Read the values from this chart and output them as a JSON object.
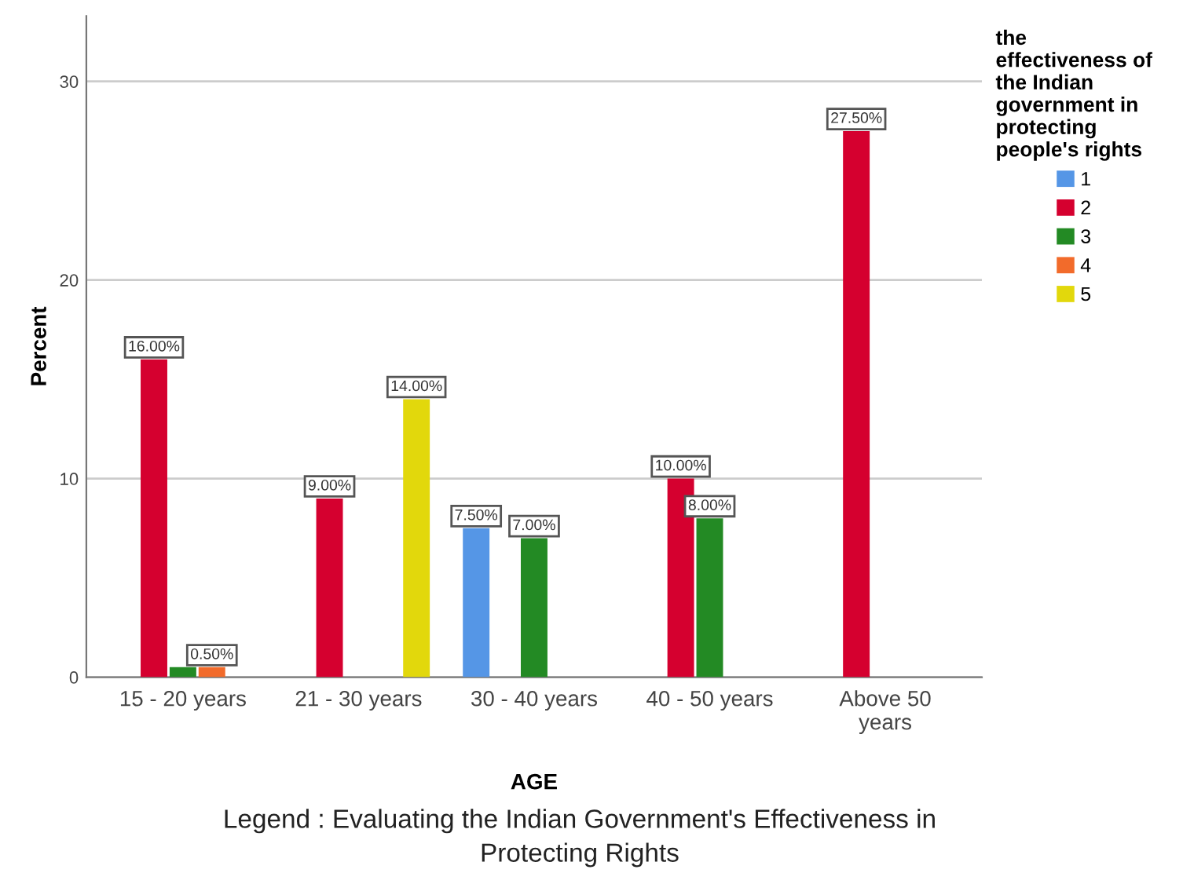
{
  "chart_data": {
    "type": "bar",
    "categories": [
      "15 - 20 years",
      "21 - 30 years",
      "30 - 40 years",
      "40 - 50 years",
      "Above 50 years"
    ],
    "series": [
      {
        "name": "1",
        "color": "#5596e6",
        "values": [
          null,
          null,
          7.5,
          null,
          null
        ],
        "value_labels": [
          null,
          null,
          "7.50%",
          null,
          null
        ]
      },
      {
        "name": "2",
        "color": "#d5002f",
        "values": [
          16,
          9,
          null,
          10,
          27.5
        ],
        "value_labels": [
          "16.00%",
          "9.00%",
          null,
          "10.00%",
          "27.50%"
        ]
      },
      {
        "name": "3",
        "color": "#238a24",
        "values": [
          0.5,
          null,
          7,
          8,
          null
        ],
        "value_labels": [
          null,
          null,
          "7.00%",
          "8.00%",
          null
        ]
      },
      {
        "name": "4",
        "color": "#f26b2b",
        "values": [
          0.5,
          null,
          null,
          null,
          null
        ],
        "value_labels": [
          "0.50%",
          null,
          null,
          null,
          null
        ]
      },
      {
        "name": "5",
        "color": "#e2d80c",
        "values": [
          null,
          14,
          null,
          null,
          null
        ],
        "value_labels": [
          null,
          "14.00%",
          null,
          null,
          null
        ]
      }
    ],
    "xlabel": "AGE",
    "ylabel": "Percent",
    "legend_title": "the effectiveness of the Indian government in protecting people's rights",
    "annotations": [
      "Legend : Evaluating the Indian Government's Effectiveness in Protecting Rights"
    ],
    "ylim": [
      0,
      33.3
    ],
    "yticks": [
      0,
      10,
      20,
      30
    ],
    "grid": "y",
    "legend": "right"
  }
}
